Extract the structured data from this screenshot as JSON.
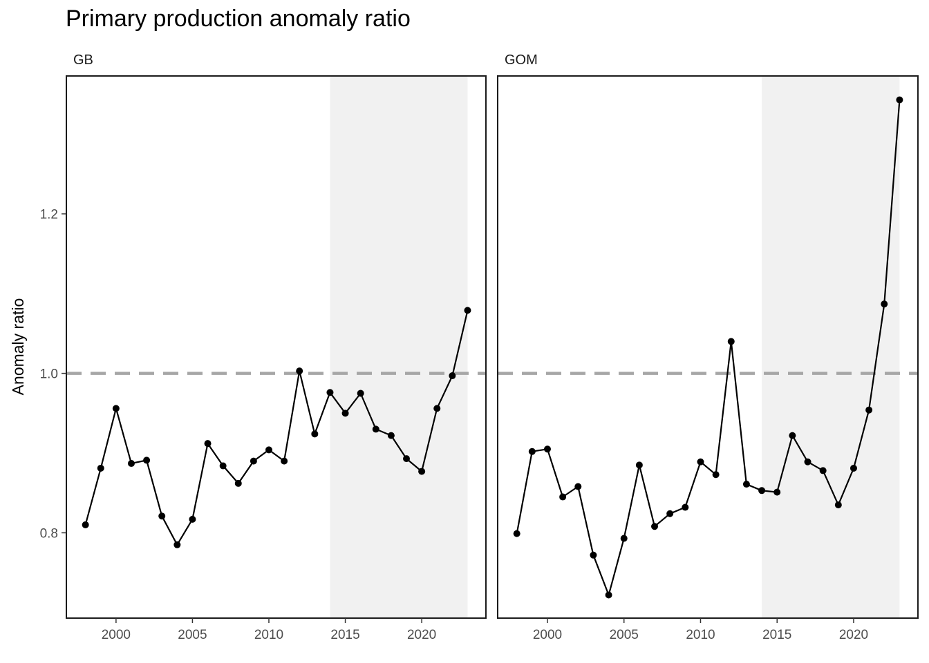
{
  "chart_data": {
    "type": "line",
    "title": "Primary production anomaly ratio",
    "xlabel": "",
    "ylabel": "Anomaly ratio",
    "xlim": [
      1996.75,
      2024.2
    ],
    "ylim": [
      0.693,
      1.373
    ],
    "x_ticks": [
      2000,
      2005,
      2010,
      2015,
      2020
    ],
    "y_ticks": [
      0.8,
      1.0,
      1.2
    ],
    "reference_line": {
      "y": 1.0,
      "style": "dashed",
      "color": "#a6a6a6"
    },
    "highlight_range": {
      "x": [
        2014,
        2023
      ],
      "color": "#f1f1f1"
    },
    "grid": false,
    "marker": "circle",
    "line_color": "#000000",
    "panels": [
      {
        "name": "GB",
        "x": [
          1998,
          1999,
          2000,
          2001,
          2002,
          2003,
          2004,
          2005,
          2006,
          2007,
          2008,
          2009,
          2010,
          2011,
          2012,
          2013,
          2014,
          2015,
          2016,
          2017,
          2018,
          2019,
          2020,
          2021,
          2022,
          2023
        ],
        "y": [
          0.81,
          0.881,
          0.956,
          0.887,
          0.891,
          0.821,
          0.785,
          0.817,
          0.912,
          0.884,
          0.862,
          0.89,
          0.904,
          0.89,
          1.003,
          0.924,
          0.976,
          0.95,
          0.975,
          0.93,
          0.922,
          0.893,
          0.877,
          0.956,
          0.997,
          1.079
        ]
      },
      {
        "name": "GOM",
        "x": [
          1998,
          1999,
          2000,
          2001,
          2002,
          2003,
          2004,
          2005,
          2006,
          2007,
          2008,
          2009,
          2010,
          2011,
          2012,
          2013,
          2014,
          2015,
          2016,
          2017,
          2018,
          2019,
          2020,
          2021,
          2022,
          2023
        ],
        "y": [
          0.799,
          0.902,
          0.905,
          0.845,
          0.858,
          0.772,
          0.722,
          0.793,
          0.885,
          0.808,
          0.824,
          0.832,
          0.889,
          0.873,
          1.04,
          0.861,
          0.853,
          0.851,
          0.922,
          0.889,
          0.878,
          0.835,
          0.881,
          0.954,
          1.087,
          1.343
        ]
      }
    ]
  }
}
